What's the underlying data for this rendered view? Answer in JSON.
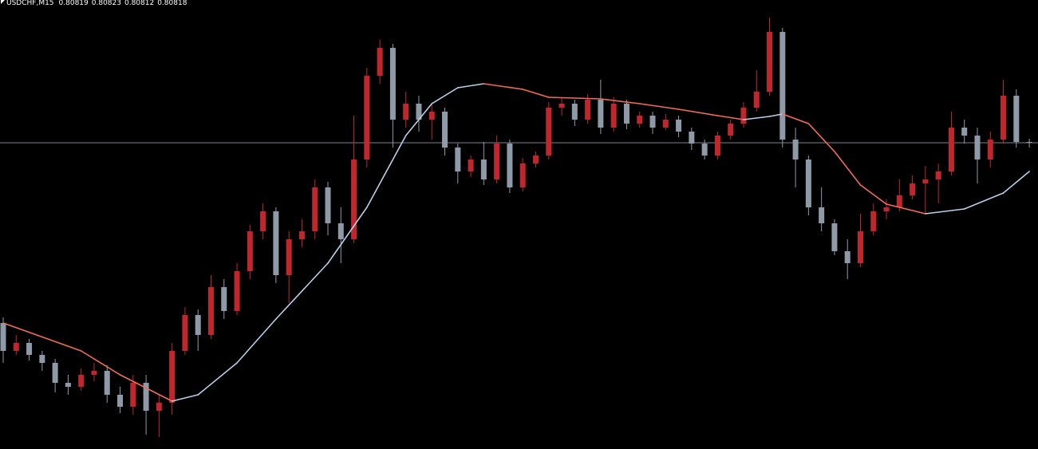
{
  "chart_data": {
    "type": "candlestick",
    "symbol": "USDCHF,M15",
    "open": [
      0.80592,
      0.80557,
      0.80567,
      0.80552,
      0.80542,
      0.80517,
      0.80512,
      0.80527,
      0.80532,
      0.80502,
      0.80487,
      0.80517,
      0.80482,
      0.80492,
      0.80557,
      0.80602,
      0.80577,
      0.80637,
      0.80607,
      0.80657,
      0.80707,
      0.80732,
      0.80652,
      0.80697,
      0.80707,
      0.80762,
      0.80717,
      0.80697,
      0.80797,
      0.80902,
      0.80937,
      0.80847,
      0.80867,
      0.80847,
      0.80857,
      0.80812,
      0.80782,
      0.80797,
      0.80772,
      0.80817,
      0.80762,
      0.80792,
      0.80802,
      0.80862,
      0.80867,
      0.80847,
      0.80872,
      0.80837,
      0.80867,
      0.80842,
      0.80852,
      0.80837,
      0.80847,
      0.80832,
      0.80817,
      0.80802,
      0.80827,
      0.80842,
      0.80862,
      0.80882,
      0.80957,
      0.80822,
      0.80797,
      0.80737,
      0.80717,
      0.80682,
      0.80667,
      0.80707,
      0.80732,
      0.80737,
      0.80752,
      0.80767,
      0.80772,
      0.80782,
      0.80837,
      0.80827,
      0.80797,
      0.80822,
      0.80877,
      0.80819
    ],
    "high": [
      0.80599,
      0.80577,
      0.80572,
      0.80557,
      0.80547,
      0.80527,
      0.80535,
      0.80542,
      0.80539,
      0.80512,
      0.80527,
      0.80527,
      0.80502,
      0.80567,
      0.80612,
      0.80609,
      0.80652,
      0.80647,
      0.80667,
      0.80715,
      0.80742,
      0.80737,
      0.80707,
      0.80722,
      0.80772,
      0.80769,
      0.80737,
      0.80852,
      0.80912,
      0.80947,
      0.80942,
      0.80882,
      0.80877,
      0.80867,
      0.80862,
      0.80817,
      0.80802,
      0.80819,
      0.80827,
      0.80822,
      0.80799,
      0.80807,
      0.80869,
      0.80875,
      0.80872,
      0.80879,
      0.80897,
      0.80875,
      0.80872,
      0.80857,
      0.80857,
      0.80854,
      0.80852,
      0.80837,
      0.80822,
      0.80832,
      0.80847,
      0.80869,
      0.80909,
      0.80975,
      0.80962,
      0.80837,
      0.80802,
      0.80762,
      0.80722,
      0.80697,
      0.80729,
      0.80742,
      0.80747,
      0.80772,
      0.80777,
      0.80789,
      0.80792,
      0.80857,
      0.80847,
      0.80837,
      0.80832,
      0.80897,
      0.80885,
      0.80823
    ],
    "low": [
      0.80542,
      0.80552,
      0.80545,
      0.80532,
      0.80505,
      0.80502,
      0.80507,
      0.80519,
      0.80492,
      0.80479,
      0.80477,
      0.80452,
      0.80449,
      0.80477,
      0.80552,
      0.80557,
      0.80572,
      0.80597,
      0.80602,
      0.80647,
      0.80697,
      0.80642,
      0.80617,
      0.80687,
      0.80697,
      0.80702,
      0.80667,
      0.80692,
      0.80787,
      0.80892,
      0.80812,
      0.80837,
      0.80832,
      0.80822,
      0.80802,
      0.80767,
      0.80775,
      0.80765,
      0.80767,
      0.80755,
      0.80757,
      0.80787,
      0.80797,
      0.80852,
      0.80839,
      0.80842,
      0.80829,
      0.80832,
      0.80835,
      0.80837,
      0.80829,
      0.80834,
      0.80825,
      0.80809,
      0.80797,
      0.80797,
      0.80822,
      0.80837,
      0.80857,
      0.80877,
      0.80812,
      0.80762,
      0.80727,
      0.80707,
      0.80677,
      0.80647,
      0.80662,
      0.80702,
      0.80722,
      0.80732,
      0.80747,
      0.80729,
      0.80742,
      0.80777,
      0.80817,
      0.80767,
      0.80787,
      0.80817,
      0.80812,
      0.80812
    ],
    "close": [
      0.80557,
      0.80567,
      0.80552,
      0.80542,
      0.80517,
      0.80512,
      0.80527,
      0.80532,
      0.80502,
      0.80487,
      0.80517,
      0.80482,
      0.80492,
      0.80557,
      0.80602,
      0.80577,
      0.80637,
      0.80607,
      0.80657,
      0.80707,
      0.80732,
      0.80652,
      0.80697,
      0.80707,
      0.80762,
      0.80717,
      0.80697,
      0.80797,
      0.80902,
      0.80937,
      0.80847,
      0.80867,
      0.80847,
      0.80857,
      0.80812,
      0.80782,
      0.80797,
      0.80772,
      0.80817,
      0.80762,
      0.80792,
      0.80802,
      0.80862,
      0.80867,
      0.80847,
      0.80872,
      0.80837,
      0.80867,
      0.80842,
      0.80852,
      0.80837,
      0.80847,
      0.80832,
      0.80817,
      0.80802,
      0.80827,
      0.80842,
      0.80862,
      0.80882,
      0.80957,
      0.80822,
      0.80797,
      0.80737,
      0.80717,
      0.80682,
      0.80667,
      0.80707,
      0.80732,
      0.80737,
      0.80752,
      0.80767,
      0.80772,
      0.80782,
      0.80837,
      0.80827,
      0.80797,
      0.80822,
      0.80877,
      0.80819,
      0.80818
    ],
    "ma": {
      "x": [
        0,
        6,
        9,
        13,
        15,
        18,
        21,
        25,
        28,
        31,
        33,
        35,
        37,
        40,
        42,
        46,
        49,
        52,
        55,
        57,
        59,
        60,
        62,
        64,
        66,
        68,
        71,
        74,
        77,
        79
      ],
      "values": [
        0.80592,
        0.80557,
        0.80527,
        0.80494,
        0.80502,
        0.80542,
        0.80597,
        0.80667,
        0.80737,
        0.80827,
        0.80867,
        0.80887,
        0.80892,
        0.80885,
        0.80875,
        0.80873,
        0.80867,
        0.8086,
        0.80852,
        0.80847,
        0.80851,
        0.80854,
        0.80842,
        0.80807,
        0.80765,
        0.80741,
        0.80729,
        0.80735,
        0.80755,
        0.80782
      ]
    },
    "ylim": [
      0.80434,
      0.80997
    ],
    "up_color": "#c0272d",
    "down_color": "#8f9aa8",
    "ma_up_color": "#b8d0e8",
    "ma_down_color": "#f26b5b",
    "price_line_color": "#7d8590"
  }
}
